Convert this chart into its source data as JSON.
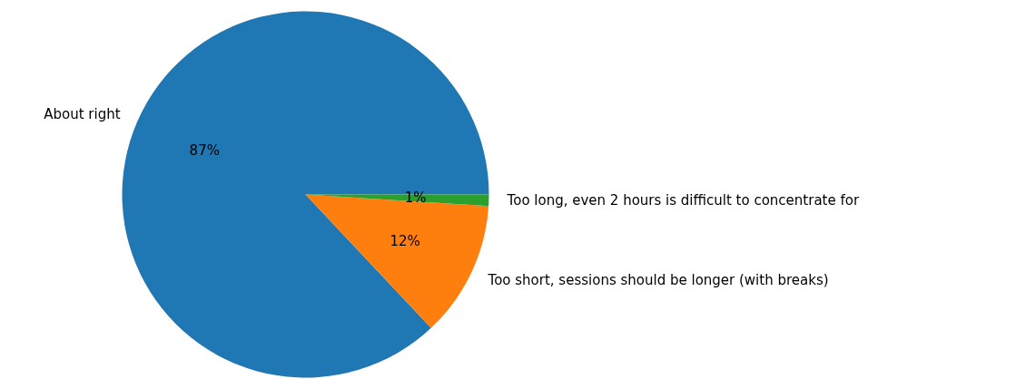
{
  "chart_data": {
    "type": "pie",
    "categories": [
      "About right",
      "Too short, sessions should be longer (with breaks)",
      "Too long, even 2 hours is difficult to concentrate for"
    ],
    "values": [
      87,
      12,
      1
    ],
    "colors": [
      "#1f77b4",
      "#ff7f0e",
      "#2ca02c"
    ],
    "value_labels": [
      "87%",
      "12%",
      "1%"
    ]
  }
}
